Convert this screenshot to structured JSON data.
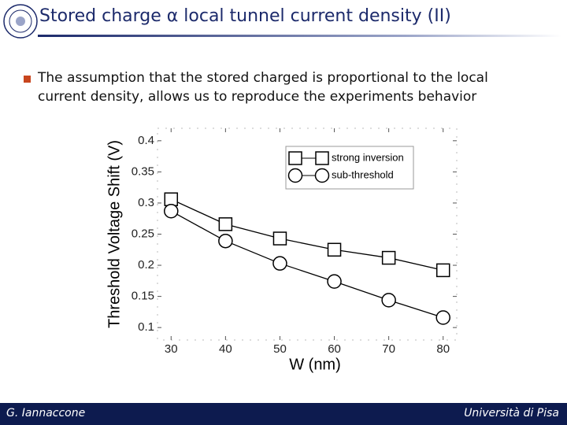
{
  "slide": {
    "title": "Stored charge α local tunnel current density (II)",
    "bullet": [
      "The assumption that the stored charged is proportional to the local",
      "current density, allows us to reproduce the experiments behavior"
    ],
    "footer_left": "G. Iannaccone",
    "footer_right": "Università di Pisa"
  },
  "chart_data": {
    "type": "line",
    "x_label": "W (nm)",
    "y_label": "Threshold Voltage Shift (V)",
    "x": [
      30,
      40,
      50,
      60,
      70,
      80
    ],
    "series": [
      {
        "name": "strong inversion",
        "color": "#000000",
        "marker": "square",
        "values": [
          0.306,
          0.266,
          0.243,
          0.225,
          0.212,
          0.192
        ]
      },
      {
        "name": "sub-threshold",
        "color": "#000000",
        "marker": "circle",
        "values": [
          0.287,
          0.239,
          0.203,
          0.174,
          0.144,
          0.116
        ]
      }
    ],
    "xlim": [
      27.5,
      82.5
    ],
    "ylim": [
      0.08,
      0.42
    ],
    "xticks": [
      30,
      40,
      50,
      60,
      70,
      80
    ],
    "yticks": [
      0.1,
      0.15,
      0.2,
      0.25,
      0.3,
      0.35,
      0.4
    ],
    "legend": "upper right"
  }
}
